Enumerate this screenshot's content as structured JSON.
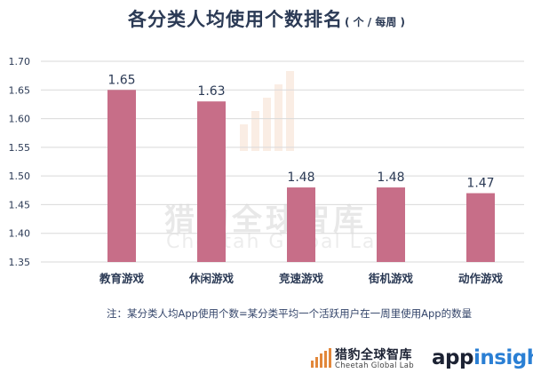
{
  "title": "各分类人均使用个数排名",
  "unit": "( 个 / 每周 )",
  "note": "注：某分类人均App使用个数=某分类平均一个活跃用户在一周里使用App的数量",
  "footer": {
    "cgl_name": "猎豹全球智库",
    "cgl_sub": "Cheetah Global Lab",
    "appinsight_a": "app",
    "appinsight_b": "insight"
  },
  "watermark": {
    "name": "猎豹全球智库",
    "sub": "Cheetah Global Lab"
  },
  "colors": {
    "bar": "#c76e88",
    "text": "#2b3a55",
    "grid": "#d9d9d9",
    "accent": "#e2873a"
  },
  "chart_data": {
    "type": "bar",
    "title": "各分类人均使用个数排名",
    "subtitle": "( 个 / 每周 )",
    "xlabel": "",
    "ylabel": "",
    "categories": [
      "教育游戏",
      "休闲游戏",
      "竞速游戏",
      "街机游戏",
      "动作游戏"
    ],
    "values": [
      1.65,
      1.63,
      1.48,
      1.48,
      1.47
    ],
    "value_labels": [
      "1.65",
      "1.63",
      "1.48",
      "1.48",
      "1.47"
    ],
    "ylim": [
      1.35,
      1.7
    ],
    "yticks": [
      "1.35",
      "1.40",
      "1.45",
      "1.50",
      "1.55",
      "1.60",
      "1.65",
      "1.70"
    ],
    "grid": true,
    "legend": "none"
  }
}
